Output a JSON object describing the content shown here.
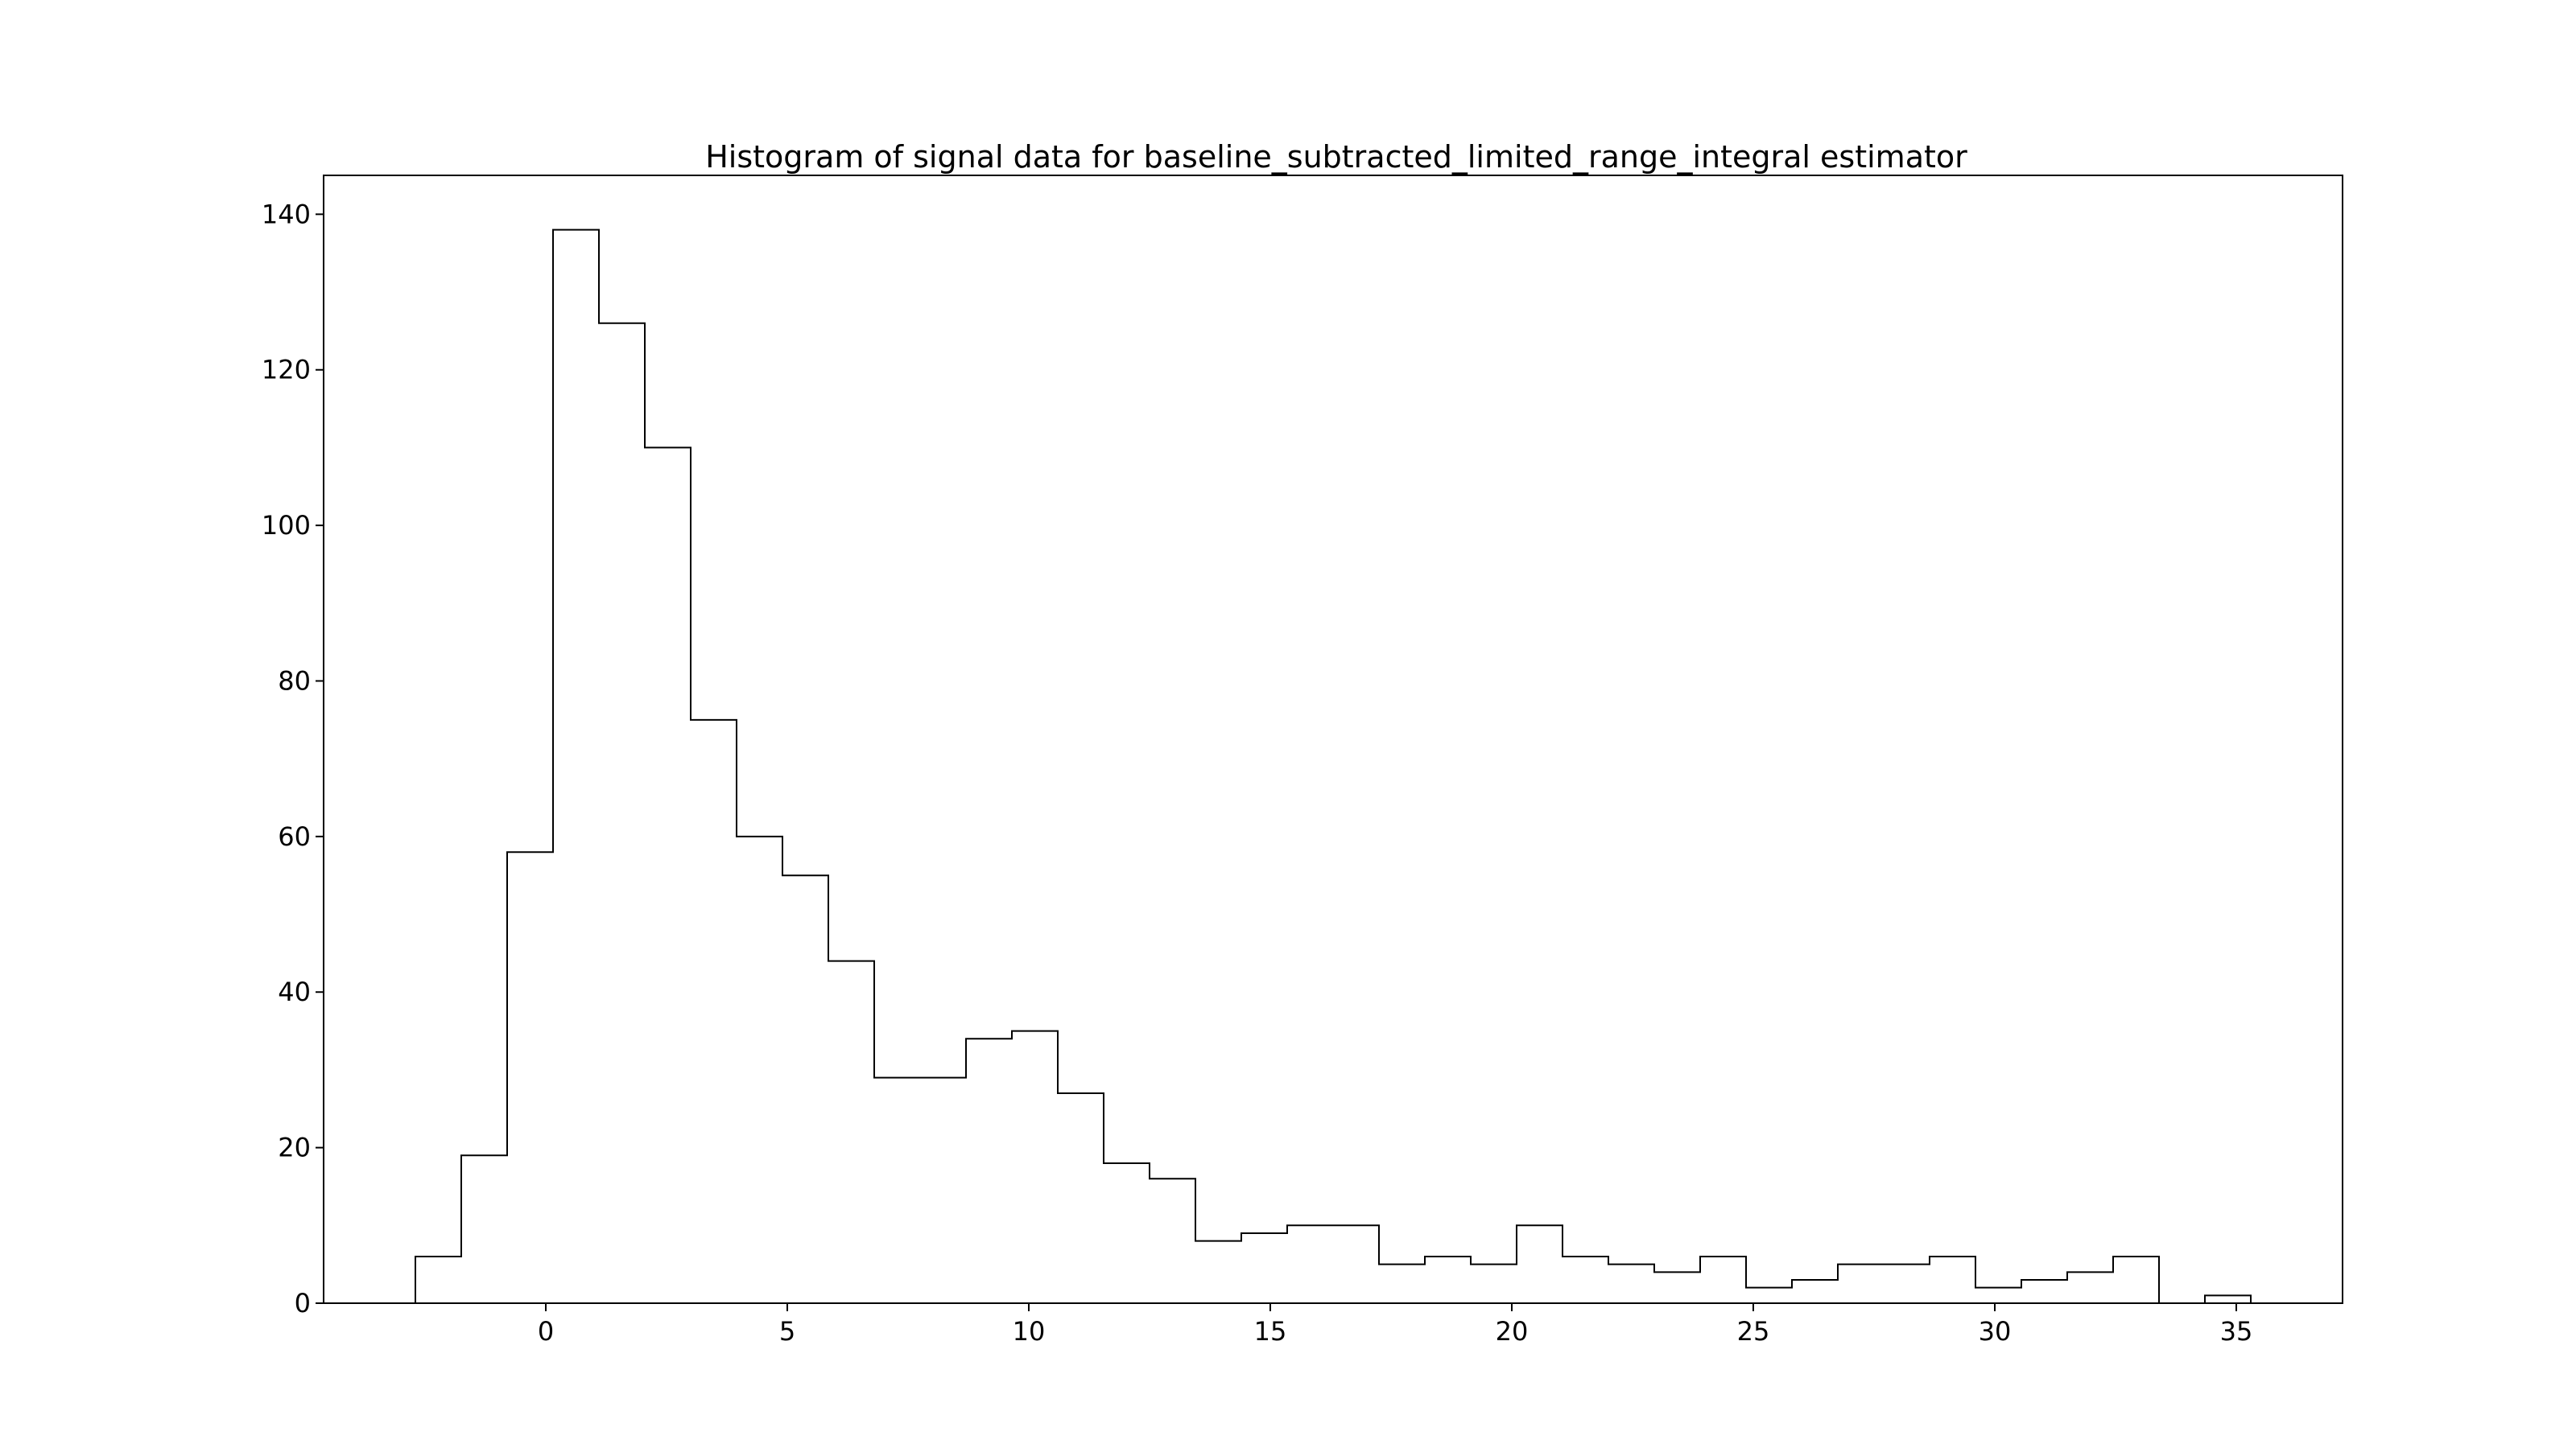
{
  "chart_data": {
    "type": "bar",
    "histtype": "step",
    "title": "Histogram of signal data for baseline_subtracted_limited_range_integral estimator",
    "xlabel": "",
    "ylabel": "",
    "xlim": [
      -4.6,
      37.2
    ],
    "ylim": [
      0,
      145
    ],
    "xticks": [
      0,
      5,
      10,
      15,
      20,
      25,
      30,
      35
    ],
    "yticks": [
      0,
      20,
      40,
      60,
      80,
      100,
      120,
      140
    ],
    "bin_edges": [
      -2.7,
      -1.75,
      -0.8,
      0.15,
      1.1,
      2.05,
      3.0,
      3.95,
      4.9,
      5.85,
      6.8,
      7.75,
      8.7,
      9.65,
      10.6,
      11.55,
      12.5,
      13.45,
      14.4,
      15.35,
      16.3,
      17.25,
      18.2,
      19.15,
      20.1,
      21.05,
      22.0,
      22.95,
      23.9,
      24.85,
      25.8,
      26.75,
      27.7,
      28.65,
      29.6,
      30.55,
      31.5,
      32.45,
      33.4,
      34.35,
      35.3
    ],
    "counts": [
      6,
      19,
      58,
      138,
      126,
      110,
      75,
      60,
      55,
      44,
      29,
      29,
      34,
      35,
      27,
      18,
      16,
      8,
      9,
      10,
      10,
      5,
      6,
      5,
      10,
      6,
      5,
      4,
      6,
      2,
      3,
      5,
      5,
      6,
      2,
      3,
      4,
      6,
      0,
      1
    ],
    "line_color": "#000000",
    "grid": false,
    "legend": "none"
  }
}
